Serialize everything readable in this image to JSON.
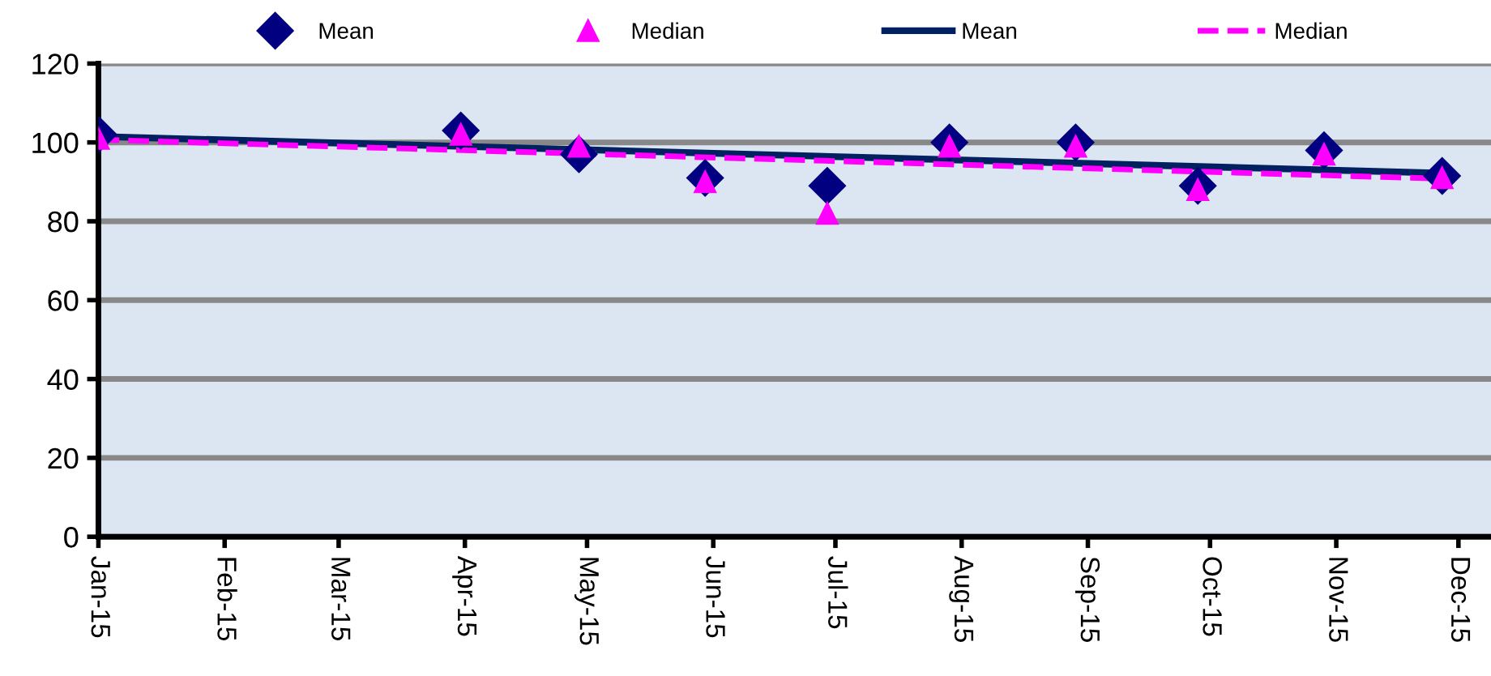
{
  "chart_data": {
    "type": "scatter",
    "x": [
      "2015-01-01",
      "2015-03-31",
      "2015-04-29",
      "2015-05-30",
      "2015-06-29",
      "2015-07-29",
      "2015-08-29",
      "2015-09-28",
      "2015-10-29",
      "2015-11-27"
    ],
    "series": [
      {
        "name": "Mean",
        "marker": "diamond",
        "color": "#000080",
        "values": [
          102,
          103,
          97,
          91,
          89,
          100,
          100,
          89,
          98,
          91.5
        ]
      },
      {
        "name": "Median",
        "marker": "triangle",
        "color": "#ff00ff",
        "values": [
          101,
          102,
          99,
          90,
          82,
          99,
          99,
          88,
          97,
          91
        ]
      },
      {
        "name": "Mean",
        "type": "line",
        "line_style": "solid",
        "color": "#002060",
        "x": [
          "2015-01-01",
          "2015-11-27"
        ],
        "values": [
          101.5,
          92.2
        ]
      },
      {
        "name": "Median",
        "type": "line",
        "line_style": "dashed",
        "color": "#ff00ff",
        "x": [
          "2015-01-01",
          "2015-11-27"
        ],
        "values": [
          100.7,
          90.8
        ]
      }
    ],
    "xlim": [
      "2015-01-01",
      "2015-12-09"
    ],
    "xticks": [
      {
        "value": "2015-01-01",
        "label": "Jan-15"
      },
      {
        "value": "2015-02-01",
        "label": "Feb-15"
      },
      {
        "value": "2015-03-01",
        "label": "Mar-15"
      },
      {
        "value": "2015-04-01",
        "label": "Apr-15"
      },
      {
        "value": "2015-05-01",
        "label": "May-15"
      },
      {
        "value": "2015-06-01",
        "label": "Jun-15"
      },
      {
        "value": "2015-07-01",
        "label": "Jul-15"
      },
      {
        "value": "2015-08-01",
        "label": "Aug-15"
      },
      {
        "value": "2015-09-01",
        "label": "Sep-15"
      },
      {
        "value": "2015-10-01",
        "label": "Oct-15"
      },
      {
        "value": "2015-11-01",
        "label": "Nov-15"
      },
      {
        "value": "2015-12-01",
        "label": "Dec-15"
      }
    ],
    "ylim": [
      0,
      120
    ],
    "yticks": [
      0,
      20,
      40,
      60,
      80,
      100,
      120
    ],
    "grid": "y",
    "legend": "top"
  }
}
